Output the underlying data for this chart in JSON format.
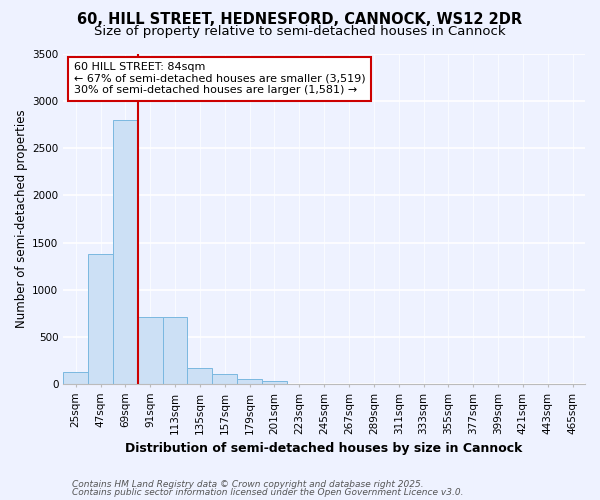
{
  "title1": "60, HILL STREET, HEDNESFORD, CANNOCK, WS12 2DR",
  "title2": "Size of property relative to semi-detached houses in Cannock",
  "xlabel": "Distribution of semi-detached houses by size in Cannock",
  "ylabel": "Number of semi-detached properties",
  "annotation_title": "60 HILL STREET: 84sqm",
  "annotation_line2": "← 67% of semi-detached houses are smaller (3,519)",
  "annotation_line3": "30% of semi-detached houses are larger (1,581) →",
  "footnote1": "Contains HM Land Registry data © Crown copyright and database right 2025.",
  "footnote2": "Contains public sector information licensed under the Open Government Licence v3.0.",
  "bins": [
    "25sqm",
    "47sqm",
    "69sqm",
    "91sqm",
    "113sqm",
    "135sqm",
    "157sqm",
    "179sqm",
    "201sqm",
    "223sqm",
    "245sqm",
    "267sqm",
    "289sqm",
    "311sqm",
    "333sqm",
    "355sqm",
    "377sqm",
    "399sqm",
    "421sqm",
    "443sqm",
    "465sqm"
  ],
  "values": [
    130,
    1380,
    2800,
    710,
    710,
    165,
    100,
    50,
    30,
    4,
    0,
    0,
    0,
    0,
    0,
    0,
    0,
    0,
    0,
    0,
    0
  ],
  "bar_color": "#cce0f5",
  "bar_edge_color": "#7ab8e0",
  "bg_color": "#eef2ff",
  "grid_color": "#ffffff",
  "annotation_box_color": "#ffffff",
  "annotation_box_edge": "#cc0000",
  "title1_fontsize": 10.5,
  "title2_fontsize": 9.5,
  "xlabel_fontsize": 9,
  "ylabel_fontsize": 8.5,
  "tick_fontsize": 7.5,
  "annotation_fontsize": 8,
  "footnote_fontsize": 6.5,
  "ylim": [
    0,
    3500
  ],
  "yticks": [
    0,
    500,
    1000,
    1500,
    2000,
    2500,
    3000,
    3500
  ],
  "red_line_bin_index": 3,
  "red_line_color": "#cc0000"
}
